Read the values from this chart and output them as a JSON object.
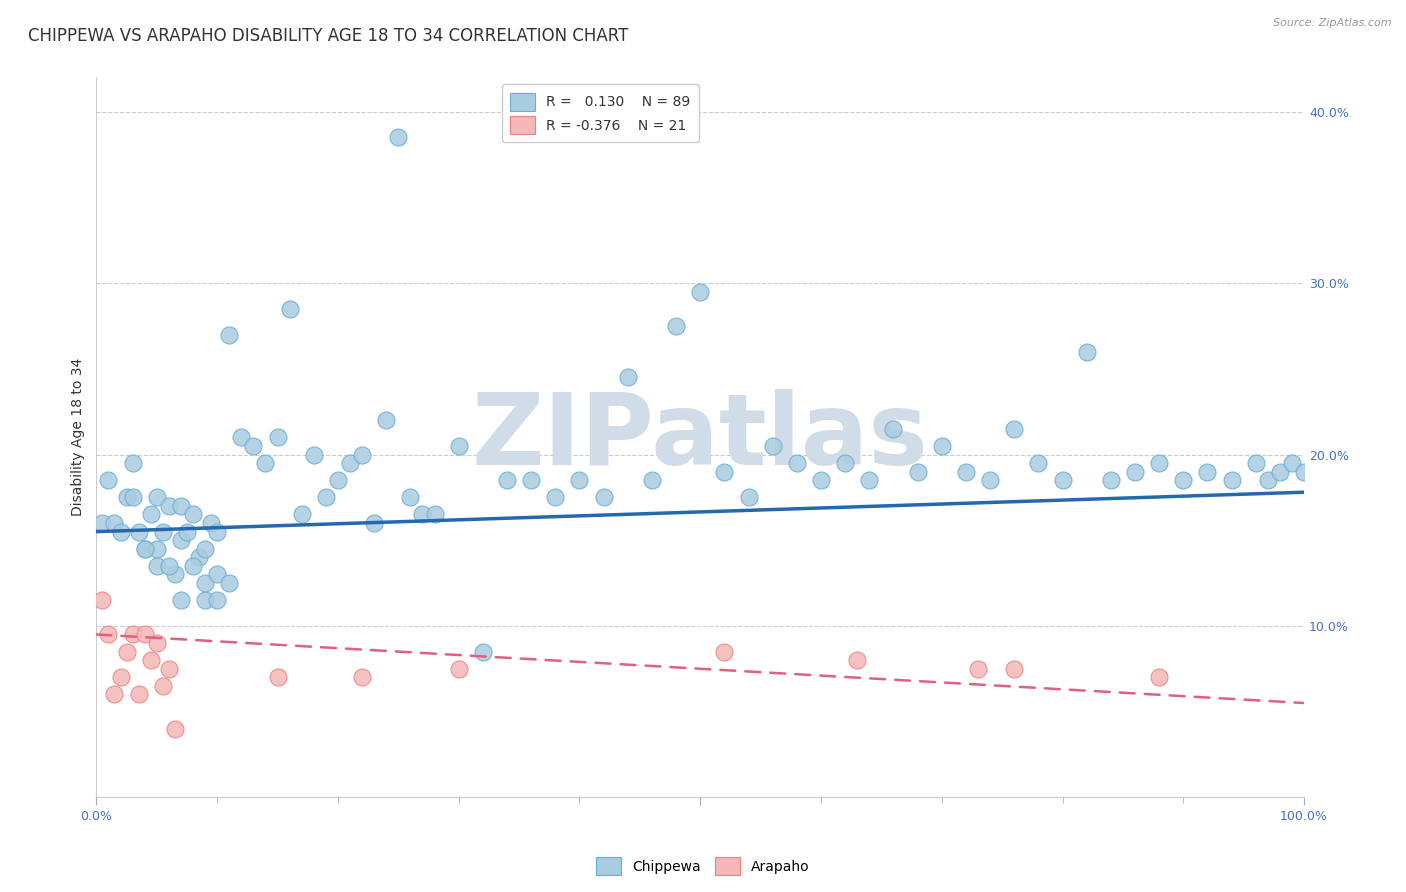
{
  "title": "CHIPPEWA VS ARAPAHO DISABILITY AGE 18 TO 34 CORRELATION CHART",
  "source": "Source: ZipAtlas.com",
  "ylabel": "Disability Age 18 to 34",
  "xlim": [
    0,
    1.0
  ],
  "ylim": [
    0,
    0.42
  ],
  "legend_R_chippewa": "0.130",
  "legend_N_chippewa": "89",
  "legend_R_arapaho": "-0.376",
  "legend_N_arapaho": "21",
  "chippewa_color": "#a8cce0",
  "arapaho_color": "#f4b8b8",
  "chippewa_edge_color": "#6aadd5",
  "arapaho_edge_color": "#f08080",
  "chippewa_line_color": "#2469ae",
  "arapaho_line_color": "#e06080",
  "arapaho_line_dash": [
    6,
    4
  ],
  "background_color": "#ffffff",
  "grid_color": "#cccccc",
  "tick_color": "#4472c4",
  "title_color": "#333333",
  "ylabel_color": "#333333",
  "watermark": "ZIPatlas",
  "watermark_color": "#d0dde8",
  "title_fontsize": 12,
  "axis_label_fontsize": 10,
  "tick_fontsize": 9,
  "legend_fontsize": 10,
  "chip_line_y0": 0.155,
  "chip_line_y1": 0.178,
  "arap_line_y0": 0.095,
  "arap_line_y1": 0.055,
  "chippewa_x": [
    0.005,
    0.01,
    0.015,
    0.02,
    0.025,
    0.03,
    0.035,
    0.04,
    0.045,
    0.05,
    0.05,
    0.055,
    0.06,
    0.065,
    0.07,
    0.07,
    0.075,
    0.08,
    0.085,
    0.09,
    0.09,
    0.095,
    0.1,
    0.1,
    0.11,
    0.12,
    0.13,
    0.14,
    0.15,
    0.16,
    0.17,
    0.18,
    0.19,
    0.2,
    0.21,
    0.22,
    0.23,
    0.24,
    0.25,
    0.26,
    0.27,
    0.28,
    0.3,
    0.32,
    0.34,
    0.36,
    0.38,
    0.4,
    0.42,
    0.44,
    0.46,
    0.48,
    0.5,
    0.52,
    0.54,
    0.56,
    0.58,
    0.6,
    0.62,
    0.64,
    0.66,
    0.68,
    0.7,
    0.72,
    0.74,
    0.76,
    0.78,
    0.8,
    0.82,
    0.84,
    0.86,
    0.88,
    0.9,
    0.92,
    0.94,
    0.96,
    0.97,
    0.98,
    0.99,
    1.0,
    0.03,
    0.04,
    0.05,
    0.06,
    0.07,
    0.08,
    0.09,
    0.1,
    0.11
  ],
  "chippewa_y": [
    0.16,
    0.185,
    0.16,
    0.155,
    0.175,
    0.195,
    0.155,
    0.145,
    0.165,
    0.175,
    0.145,
    0.155,
    0.17,
    0.13,
    0.17,
    0.15,
    0.155,
    0.165,
    0.14,
    0.145,
    0.115,
    0.16,
    0.155,
    0.115,
    0.27,
    0.21,
    0.205,
    0.195,
    0.21,
    0.285,
    0.165,
    0.2,
    0.175,
    0.185,
    0.195,
    0.2,
    0.16,
    0.22,
    0.385,
    0.175,
    0.165,
    0.165,
    0.205,
    0.085,
    0.185,
    0.185,
    0.175,
    0.185,
    0.175,
    0.245,
    0.185,
    0.275,
    0.295,
    0.19,
    0.175,
    0.205,
    0.195,
    0.185,
    0.195,
    0.185,
    0.215,
    0.19,
    0.205,
    0.19,
    0.185,
    0.215,
    0.195,
    0.185,
    0.26,
    0.185,
    0.19,
    0.195,
    0.185,
    0.19,
    0.185,
    0.195,
    0.185,
    0.19,
    0.195,
    0.19,
    0.175,
    0.145,
    0.135,
    0.135,
    0.115,
    0.135,
    0.125,
    0.13,
    0.125
  ],
  "arapaho_x": [
    0.005,
    0.01,
    0.015,
    0.02,
    0.025,
    0.03,
    0.035,
    0.04,
    0.045,
    0.05,
    0.055,
    0.06,
    0.065,
    0.15,
    0.22,
    0.3,
    0.52,
    0.63,
    0.73,
    0.76,
    0.88
  ],
  "arapaho_y": [
    0.115,
    0.095,
    0.06,
    0.07,
    0.085,
    0.095,
    0.06,
    0.095,
    0.08,
    0.09,
    0.065,
    0.075,
    0.04,
    0.07,
    0.07,
    0.075,
    0.085,
    0.08,
    0.075,
    0.075,
    0.07
  ]
}
